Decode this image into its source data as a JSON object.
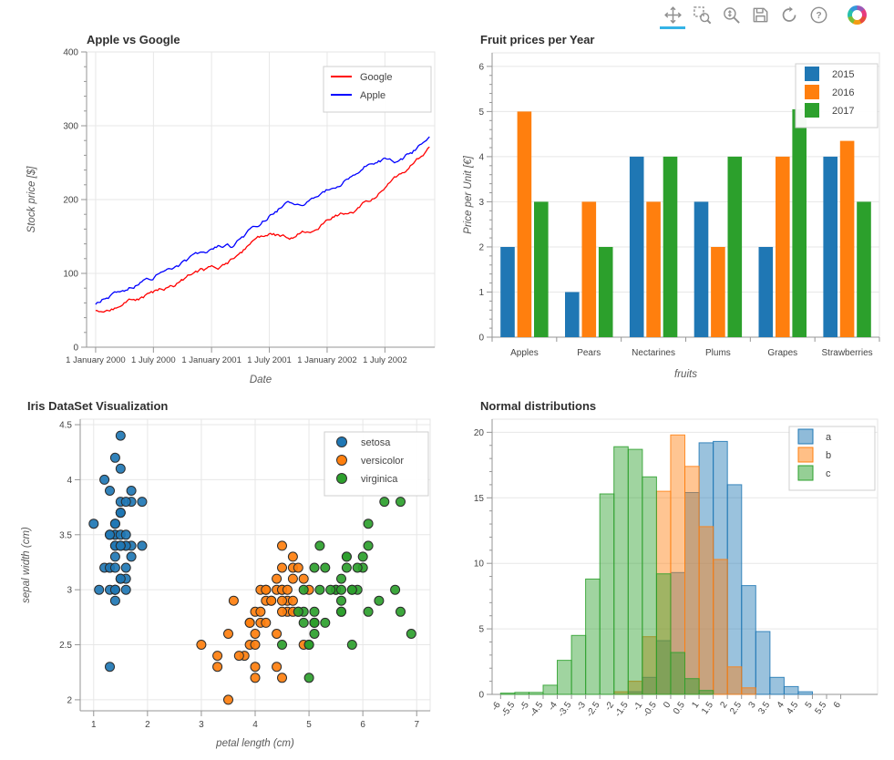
{
  "toolbar": {
    "help_glyph": "?",
    "active_color": "#34b3e6",
    "tools": [
      {
        "id": "pan",
        "active": true
      },
      {
        "id": "box-zoom",
        "active": false
      },
      {
        "id": "wheel-zoom",
        "active": false
      },
      {
        "id": "save",
        "active": false
      },
      {
        "id": "reset",
        "active": false
      },
      {
        "id": "help",
        "active": false
      }
    ]
  },
  "chart_data": [
    {
      "type": "line",
      "title": "Apple vs Google",
      "xlabel": "Date",
      "ylabel": "Stock price [$]",
      "ylim": [
        0,
        400
      ],
      "yticks": [
        0,
        100,
        200,
        300,
        400
      ],
      "xticks": [
        {
          "pos": 0.026,
          "label": "1 January 2000"
        },
        {
          "pos": 0.192,
          "label": "1 July 2000"
        },
        {
          "pos": 0.359,
          "label": "1 January 2001"
        },
        {
          "pos": 0.525,
          "label": "1 July 2001"
        },
        {
          "pos": 0.691,
          "label": "1 January 2002"
        },
        {
          "pos": 0.857,
          "label": "1 July 2002"
        }
      ],
      "legend": [
        "Google",
        "Apple"
      ],
      "series": [
        {
          "name": "Google",
          "color": "#ff0000",
          "seed": 77,
          "x": [
            0.026,
            0.05,
            0.09,
            0.13,
            0.17,
            0.21,
            0.25,
            0.29,
            0.33,
            0.36,
            0.4,
            0.44,
            0.47,
            0.5,
            0.53,
            0.56,
            0.59,
            0.62,
            0.65,
            0.68,
            0.71,
            0.74,
            0.77,
            0.8,
            0.83,
            0.86,
            0.89,
            0.92,
            0.95,
            0.97,
            0.985
          ],
          "y": [
            52,
            48,
            54,
            63,
            70,
            77,
            84,
            93,
            102,
            104,
            112,
            126,
            139,
            148,
            153,
            151,
            149,
            156,
            163,
            172,
            180,
            183,
            186,
            196,
            206,
            218,
            230,
            240,
            255,
            262,
            268
          ]
        },
        {
          "name": "Apple",
          "color": "#0000ff",
          "seed": 913,
          "x": [
            0.026,
            0.05,
            0.09,
            0.13,
            0.17,
            0.21,
            0.25,
            0.29,
            0.33,
            0.36,
            0.4,
            0.42,
            0.44,
            0.47,
            0.5,
            0.53,
            0.56,
            0.59,
            0.62,
            0.65,
            0.68,
            0.71,
            0.74,
            0.77,
            0.8,
            0.83,
            0.86,
            0.89,
            0.92,
            0.95,
            0.97,
            0.985
          ],
          "y": [
            60,
            70,
            78,
            84,
            92,
            101,
            110,
            117,
            126,
            133,
            140,
            137,
            146,
            157,
            168,
            180,
            191,
            198,
            196,
            204,
            212,
            220,
            229,
            238,
            247,
            254,
            258,
            254,
            261,
            270,
            278,
            289
          ]
        }
      ]
    },
    {
      "type": "bar",
      "title": "Fruit prices per Year",
      "xlabel": "fruits",
      "ylabel": "Price per Unit [€]",
      "categories": [
        "Apples",
        "Pears",
        "Nectarines",
        "Plums",
        "Grapes",
        "Strawberries"
      ],
      "ylim": [
        0,
        6.3
      ],
      "yticks": [
        0,
        1,
        2,
        3,
        4,
        5,
        6
      ],
      "legend": [
        "2015",
        "2016",
        "2017"
      ],
      "series": [
        {
          "name": "2015",
          "color": "#1f77b4",
          "values": [
            2,
            1,
            4,
            3,
            2,
            4
          ]
        },
        {
          "name": "2016",
          "color": "#ff7f0e",
          "values": [
            5,
            3,
            3,
            2,
            4,
            4.35
          ]
        },
        {
          "name": "2017",
          "color": "#2ca02c",
          "values": [
            3,
            2,
            4,
            4,
            5.05,
            3
          ]
        }
      ]
    },
    {
      "type": "scatter",
      "title": "Iris DataSet Visualization",
      "xlabel": "petal length (cm)",
      "ylabel": "sepal width (cm)",
      "xlim": [
        0.75,
        7.25
      ],
      "ylim": [
        1.9,
        4.55
      ],
      "xticks": [
        1,
        2,
        3,
        4,
        5,
        6,
        7
      ],
      "yticks": [
        2,
        2.5,
        3,
        3.5,
        4,
        4.5
      ],
      "legend": [
        "setosa",
        "versicolor",
        "virginica"
      ],
      "groups": [
        {
          "name": "setosa",
          "color": "#1f77b4",
          "points": [
            [
              1.4,
              3.5
            ],
            [
              1.4,
              3.0
            ],
            [
              1.3,
              3.2
            ],
            [
              1.5,
              3.1
            ],
            [
              1.4,
              3.6
            ],
            [
              1.7,
              3.9
            ],
            [
              1.4,
              3.4
            ],
            [
              1.5,
              3.4
            ],
            [
              1.4,
              2.9
            ],
            [
              1.5,
              3.1
            ],
            [
              1.5,
              3.7
            ],
            [
              1.6,
              3.4
            ],
            [
              1.4,
              3.0
            ],
            [
              1.1,
              3.0
            ],
            [
              1.2,
              4.0
            ],
            [
              1.5,
              4.4
            ],
            [
              1.3,
              3.9
            ],
            [
              1.4,
              3.5
            ],
            [
              1.7,
              3.8
            ],
            [
              1.5,
              3.8
            ],
            [
              1.7,
              3.4
            ],
            [
              1.5,
              3.7
            ],
            [
              1.0,
              3.6
            ],
            [
              1.7,
              3.3
            ],
            [
              1.9,
              3.4
            ],
            [
              1.6,
              3.0
            ],
            [
              1.6,
              3.4
            ],
            [
              1.5,
              3.5
            ],
            [
              1.4,
              3.4
            ],
            [
              1.6,
              3.2
            ],
            [
              1.6,
              3.1
            ],
            [
              1.5,
              3.4
            ],
            [
              1.5,
              4.1
            ],
            [
              1.4,
              4.2
            ],
            [
              1.5,
              3.1
            ],
            [
              1.2,
              3.2
            ],
            [
              1.3,
              3.5
            ],
            [
              1.4,
              3.6
            ],
            [
              1.3,
              3.0
            ],
            [
              1.5,
              3.4
            ],
            [
              1.3,
              3.5
            ],
            [
              1.3,
              2.3
            ],
            [
              1.3,
              3.2
            ],
            [
              1.6,
              3.5
            ],
            [
              1.9,
              3.8
            ],
            [
              1.4,
              3.0
            ],
            [
              1.6,
              3.8
            ],
            [
              1.4,
              3.2
            ],
            [
              1.5,
              3.7
            ],
            [
              1.4,
              3.3
            ]
          ]
        },
        {
          "name": "versicolor",
          "color": "#ff7f0e",
          "points": [
            [
              4.7,
              3.2
            ],
            [
              4.5,
              3.2
            ],
            [
              4.9,
              3.1
            ],
            [
              4.0,
              2.3
            ],
            [
              4.6,
              2.8
            ],
            [
              4.5,
              2.8
            ],
            [
              4.7,
              3.3
            ],
            [
              3.3,
              2.4
            ],
            [
              4.6,
              2.9
            ],
            [
              3.9,
              2.7
            ],
            [
              3.5,
              2.0
            ],
            [
              4.2,
              3.0
            ],
            [
              4.0,
              2.2
            ],
            [
              4.7,
              2.9
            ],
            [
              3.6,
              2.9
            ],
            [
              4.4,
              3.1
            ],
            [
              4.5,
              3.0
            ],
            [
              4.1,
              2.7
            ],
            [
              4.5,
              2.2
            ],
            [
              3.9,
              2.5
            ],
            [
              4.8,
              3.2
            ],
            [
              4.0,
              2.8
            ],
            [
              4.9,
              2.5
            ],
            [
              4.7,
              2.8
            ],
            [
              4.3,
              2.9
            ],
            [
              4.4,
              3.0
            ],
            [
              4.8,
              2.8
            ],
            [
              5.0,
              3.0
            ],
            [
              4.5,
              2.9
            ],
            [
              3.5,
              2.6
            ],
            [
              3.8,
              2.4
            ],
            [
              3.7,
              2.4
            ],
            [
              3.9,
              2.7
            ],
            [
              5.1,
              2.7
            ],
            [
              4.5,
              3.0
            ],
            [
              4.5,
              3.4
            ],
            [
              4.7,
              3.1
            ],
            [
              4.4,
              2.3
            ],
            [
              4.1,
              3.0
            ],
            [
              4.0,
              2.5
            ],
            [
              4.4,
              2.6
            ],
            [
              4.6,
              3.0
            ],
            [
              4.0,
              2.6
            ],
            [
              3.3,
              2.3
            ],
            [
              4.2,
              2.7
            ],
            [
              4.2,
              3.0
            ],
            [
              4.2,
              2.9
            ],
            [
              4.3,
              2.9
            ],
            [
              3.0,
              2.5
            ],
            [
              4.1,
              2.8
            ]
          ]
        },
        {
          "name": "virginica",
          "color": "#2ca02c",
          "points": [
            [
              6.0,
              3.3
            ],
            [
              5.1,
              2.7
            ],
            [
              5.9,
              3.0
            ],
            [
              5.6,
              2.9
            ],
            [
              5.8,
              3.0
            ],
            [
              6.6,
              3.0
            ],
            [
              4.5,
              2.5
            ],
            [
              6.3,
              2.9
            ],
            [
              5.8,
              2.5
            ],
            [
              6.1,
              3.6
            ],
            [
              5.1,
              3.2
            ],
            [
              5.3,
              2.7
            ],
            [
              5.5,
              3.0
            ],
            [
              5.0,
              2.5
            ],
            [
              5.1,
              2.8
            ],
            [
              5.3,
              3.2
            ],
            [
              5.5,
              3.0
            ],
            [
              6.7,
              3.8
            ],
            [
              6.9,
              2.6
            ],
            [
              5.0,
              2.2
            ],
            [
              5.7,
              3.2
            ],
            [
              4.9,
              2.8
            ],
            [
              6.7,
              2.8
            ],
            [
              4.9,
              2.7
            ],
            [
              5.7,
              3.3
            ],
            [
              6.0,
              3.2
            ],
            [
              4.8,
              2.8
            ],
            [
              4.9,
              3.0
            ],
            [
              5.6,
              2.8
            ],
            [
              5.8,
              3.0
            ],
            [
              6.1,
              2.8
            ],
            [
              6.4,
              3.8
            ],
            [
              5.6,
              2.8
            ],
            [
              5.1,
              2.6
            ],
            [
              5.6,
              3.0
            ],
            [
              6.1,
              3.4
            ],
            [
              5.6,
              3.1
            ],
            [
              5.1,
              2.7
            ],
            [
              5.9,
              3.2
            ],
            [
              5.7,
              3.3
            ],
            [
              5.2,
              3.0
            ],
            [
              5.0,
              2.5
            ],
            [
              5.2,
              3.4
            ],
            [
              5.4,
              3.0
            ]
          ]
        }
      ]
    },
    {
      "type": "histogram",
      "title": "Normal distributions",
      "xlabel": "",
      "ylabel": "",
      "xlim": [
        -6.3,
        7.3
      ],
      "ylim": [
        0,
        21
      ],
      "binwidth": 0.5,
      "yticks": [
        0,
        5,
        10,
        15,
        20
      ],
      "xticks": [
        -6,
        -5.5,
        -5,
        -4.5,
        -4,
        -3.5,
        -3,
        -2.5,
        -2,
        -1.5,
        -1,
        -0.5,
        0,
        0.5,
        1,
        1.5,
        2,
        2.5,
        3,
        3.5,
        4,
        4.5,
        5,
        5.5,
        6
      ],
      "legend": [
        "a",
        "b",
        "c"
      ],
      "series": [
        {
          "name": "a",
          "color": "#1f77b4",
          "bins": [
            [
              -1.5,
              0.2
            ],
            [
              -1.0,
              1.3
            ],
            [
              -0.5,
              4.1
            ],
            [
              0,
              9.3
            ],
            [
              0.5,
              15.4
            ],
            [
              1,
              19.2
            ],
            [
              1.5,
              19.3
            ],
            [
              2,
              16.0
            ],
            [
              2.5,
              8.3
            ],
            [
              3,
              4.8
            ],
            [
              3.5,
              1.3
            ],
            [
              4,
              0.6
            ],
            [
              4.5,
              0.2
            ]
          ]
        },
        {
          "name": "b",
          "color": "#ff7f0e",
          "bins": [
            [
              -2,
              0.2
            ],
            [
              -1.5,
              1.0
            ],
            [
              -1,
              4.4
            ],
            [
              -0.5,
              15.5
            ],
            [
              0,
              19.8
            ],
            [
              0.5,
              17.4
            ],
            [
              1,
              12.8
            ],
            [
              1.5,
              10.3
            ],
            [
              2,
              2.1
            ],
            [
              2.5,
              0.5
            ]
          ]
        },
        {
          "name": "c",
          "color": "#2ca02c",
          "bins": [
            [
              -6,
              0.1
            ],
            [
              -5.5,
              0.15
            ],
            [
              -5,
              0.15
            ],
            [
              -4.5,
              0.7
            ],
            [
              -4,
              2.6
            ],
            [
              -3.5,
              4.5
            ],
            [
              -3,
              8.8
            ],
            [
              -2.5,
              15.3
            ],
            [
              -2,
              18.9
            ],
            [
              -1.5,
              18.7
            ],
            [
              -1,
              16.6
            ],
            [
              -0.5,
              9.2
            ],
            [
              0,
              3.2
            ],
            [
              0.5,
              1.2
            ],
            [
              1,
              0.3
            ]
          ]
        }
      ]
    }
  ]
}
